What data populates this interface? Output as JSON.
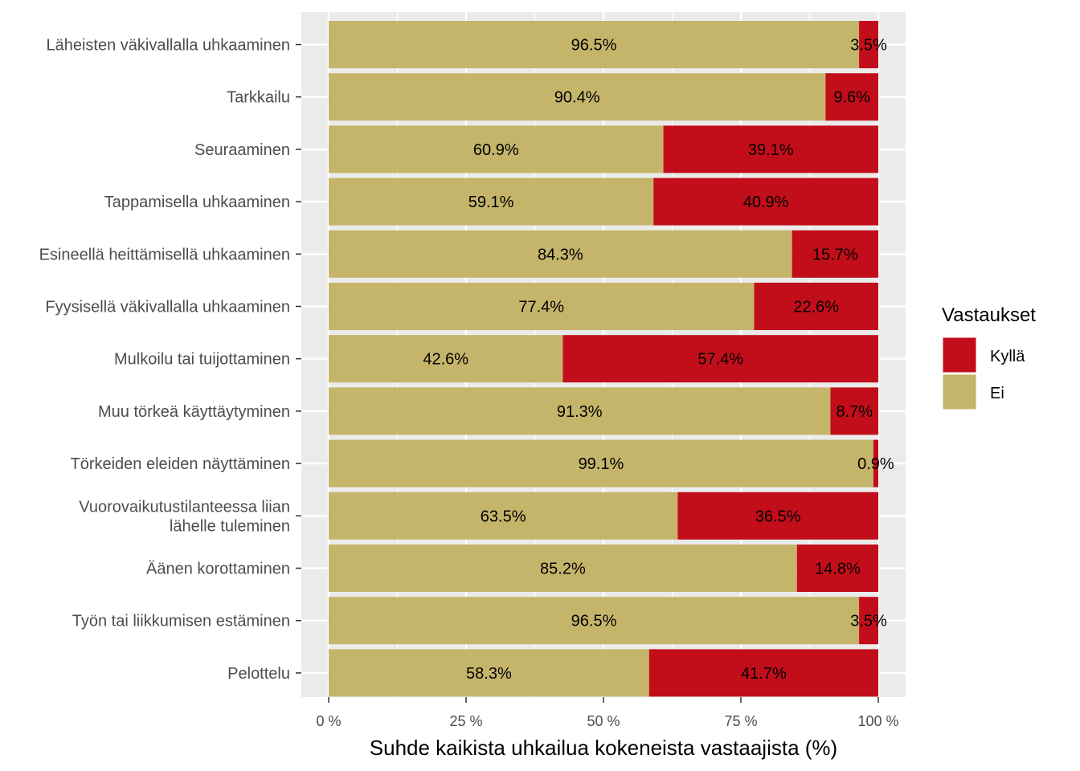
{
  "chart_data": {
    "type": "bar",
    "orientation": "horizontal",
    "stacked": true,
    "categories": [
      "Läheisten väkivallalla uhkaaminen",
      "Tarkkailu",
      "Seuraaminen",
      "Tappamisella uhkaaminen",
      "Esineellä heittämisellä uhkaaminen",
      "Fyysisellä väkivallalla uhkaaminen",
      "Mulkoilu tai tuijottaminen",
      "Muu törkeä käyttäytyminen",
      "Törkeiden eleiden näyttäminen",
      "Vuorovaikutustilanteessa liian\nlähelle tuleminen",
      "Äänen korottaminen",
      "Työn tai liikkumisen estäminen",
      "Pelottelu"
    ],
    "series": [
      {
        "name": "Ei",
        "color": "#c5b56b",
        "values": [
          96.5,
          90.4,
          60.9,
          59.1,
          84.3,
          77.4,
          42.6,
          91.3,
          99.1,
          63.5,
          85.2,
          96.5,
          58.3
        ],
        "labels": [
          "96.5%",
          "90.4%",
          "60.9%",
          "59.1%",
          "84.3%",
          "77.4%",
          "42.6%",
          "91.3%",
          "99.1%",
          "63.5%",
          "85.2%",
          "96.5%",
          "58.3%"
        ]
      },
      {
        "name": "Kyllä",
        "color": "#c20e1a",
        "values": [
          3.5,
          9.6,
          39.1,
          40.9,
          15.7,
          22.6,
          57.4,
          8.7,
          0.9,
          36.5,
          14.8,
          3.5,
          41.7
        ],
        "labels": [
          "3.5%",
          "9.6%",
          "39.1%",
          "40.9%",
          "15.7%",
          "22.6%",
          "57.4%",
          "8.7%",
          "0.9%",
          "36.5%",
          "14.8%",
          "3.5%",
          "41.7%"
        ]
      }
    ],
    "xlim": [
      0,
      100
    ],
    "x_ticks": [
      0,
      25,
      50,
      75,
      100
    ],
    "x_tick_labels": [
      "0 %",
      "25 %",
      "50 %",
      "75 %",
      "100 %"
    ],
    "xlabel": "Suhde kaikista uhkailua kokeneista vastaajista (%)",
    "ylabel": "",
    "grid": true,
    "legend": {
      "title": "Vastaukset",
      "position": "right",
      "entries": [
        {
          "label": "Kyllä",
          "color": "#c20e1a"
        },
        {
          "label": "Ei",
          "color": "#c5b56b"
        }
      ]
    },
    "panel_background": "#ebebeb"
  }
}
